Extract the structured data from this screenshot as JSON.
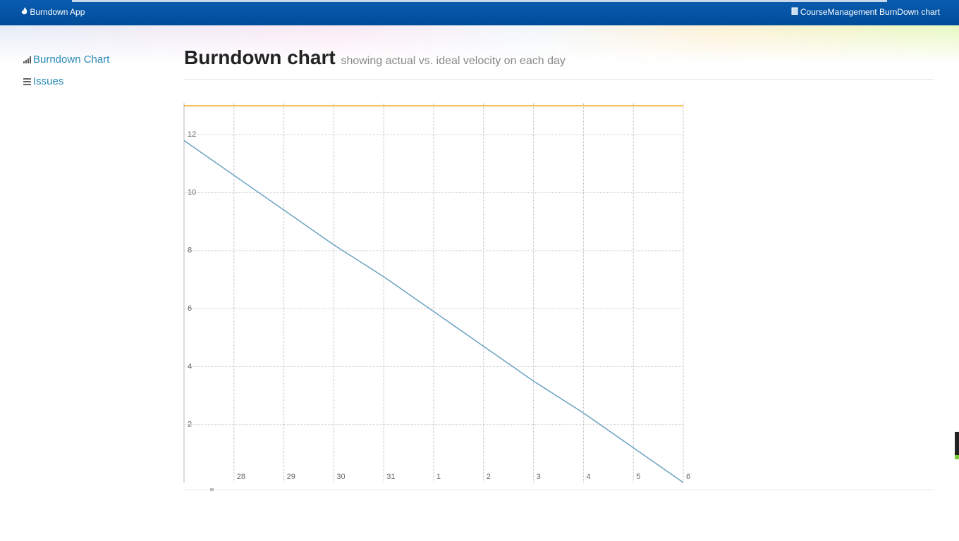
{
  "header": {
    "app_name": "Burndown App",
    "project": "CourseManagement BurnDown chart"
  },
  "sidebar": {
    "items": [
      "Burndown Chart",
      "Issues"
    ]
  },
  "page": {
    "title": "Burndown chart",
    "subtitle": "showing actual vs. ideal velocity on each day"
  },
  "chart_data": {
    "type": "line",
    "categories": [
      null,
      "28",
      "29",
      "30",
      "31",
      "1",
      "2",
      "3",
      "4",
      "5",
      "6"
    ],
    "series": [
      {
        "color": "#f0a30a",
        "values": [
          13,
          13,
          13,
          13,
          13,
          13,
          13,
          13,
          13,
          13,
          13
        ]
      },
      {
        "color": "#6ba3c1",
        "values": [
          11.8,
          10.6,
          9.4,
          8.2,
          7.1,
          5.9,
          4.7,
          3.5,
          2.4,
          1.2,
          0
        ]
      }
    ],
    "ylim": [
      0,
      13.1
    ],
    "yticks": [
      2,
      4,
      6,
      8,
      10,
      12
    ],
    "grid": true
  }
}
